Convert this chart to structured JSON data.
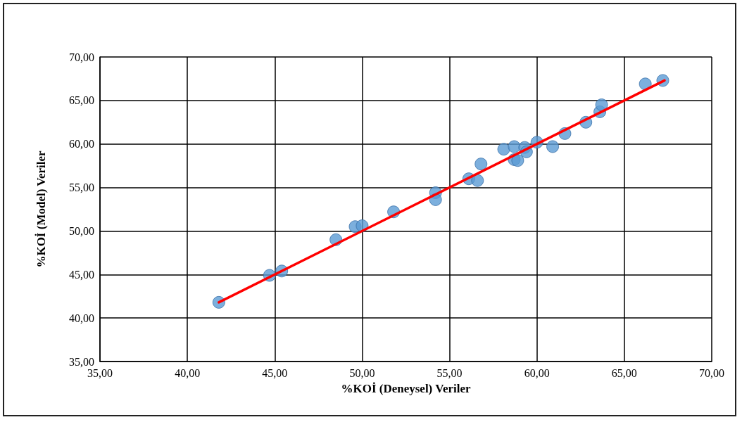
{
  "chart_data": {
    "type": "scatter",
    "xlabel": "%KOİ (Deneysel) Veriler",
    "ylabel": "%KOİ (Model) Veriler",
    "xlim": [
      35,
      70
    ],
    "ylim": [
      35,
      70
    ],
    "xticks": [
      {
        "value": 35,
        "label": "35,00"
      },
      {
        "value": 40,
        "label": "40,00"
      },
      {
        "value": 45,
        "label": "45,00"
      },
      {
        "value": 50,
        "label": "50,00"
      },
      {
        "value": 55,
        "label": "55,00"
      },
      {
        "value": 60,
        "label": "60,00"
      },
      {
        "value": 65,
        "label": "65,00"
      },
      {
        "value": 70,
        "label": "70,00"
      }
    ],
    "yticks": [
      {
        "value": 35,
        "label": "35,00"
      },
      {
        "value": 40,
        "label": "40,00"
      },
      {
        "value": 45,
        "label": "45,00"
      },
      {
        "value": 50,
        "label": "50,00"
      },
      {
        "value": 55,
        "label": "55,00"
      },
      {
        "value": 60,
        "label": "60,00"
      },
      {
        "value": 65,
        "label": "65,00"
      },
      {
        "value": 70,
        "label": "70,00"
      }
    ],
    "grid": true,
    "marker": "circle",
    "series": [
      {
        "color": "#5b9bd5",
        "x": [
          41.8,
          44.7,
          45.4,
          48.5,
          49.6,
          50.0,
          51.8,
          54.2,
          54.2,
          56.1,
          56.6,
          56.8,
          58.1,
          58.7,
          58.7,
          58.9,
          59.3,
          59.4,
          60.0,
          60.9,
          61.6,
          62.8,
          63.6,
          63.7,
          66.2,
          67.2
        ],
        "values": [
          41.8,
          44.9,
          45.4,
          49.0,
          50.5,
          50.6,
          52.2,
          54.4,
          53.6,
          56.0,
          55.8,
          57.7,
          59.4,
          59.7,
          58.2,
          58.1,
          59.6,
          59.1,
          60.2,
          59.7,
          61.2,
          62.5,
          63.7,
          64.5,
          66.9,
          67.3
        ]
      },
      {
        "type": "line",
        "color": "#ff0000",
        "marker": "none",
        "x": [
          41.8,
          67.3
        ],
        "values": [
          41.8,
          67.3
        ]
      }
    ]
  }
}
